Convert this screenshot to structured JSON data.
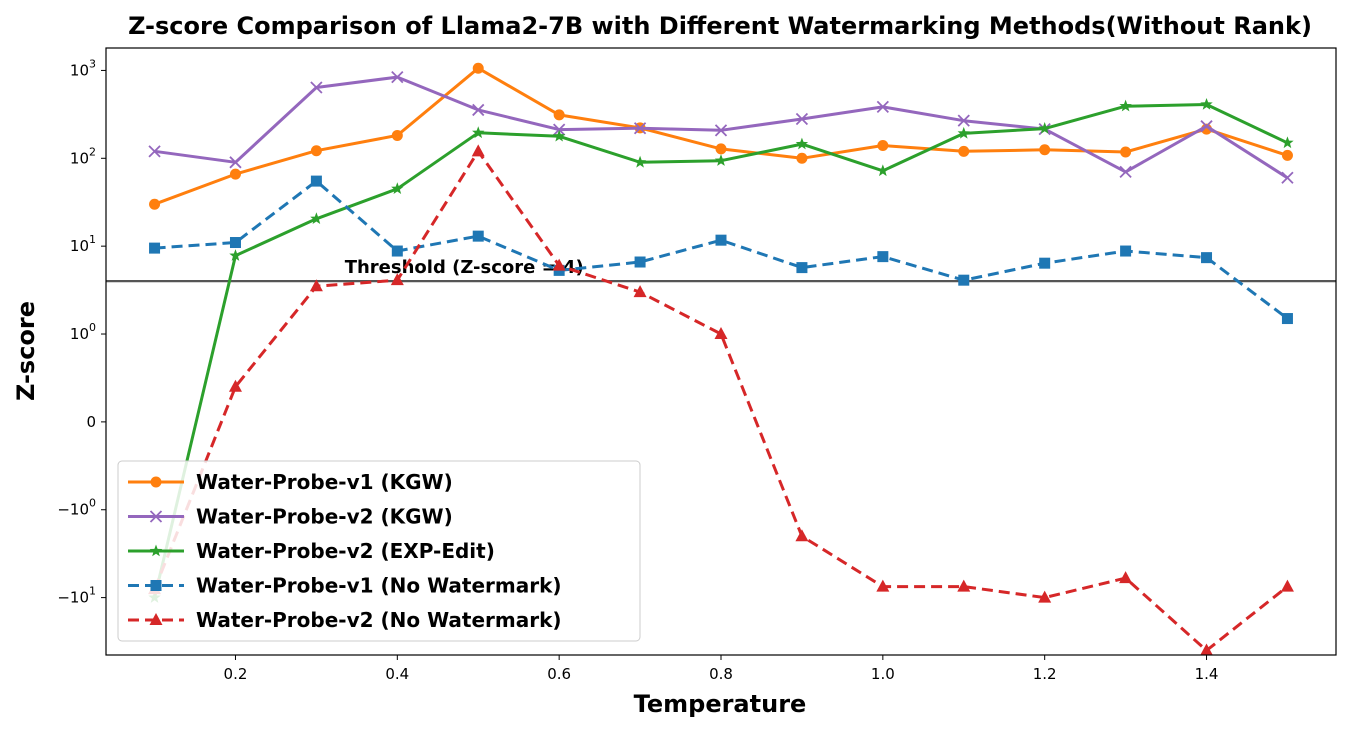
{
  "chart_data": {
    "type": "line",
    "title": "Z-score Comparison of Llama2-7B with Different Watermarking Methods(Without Rank)",
    "xlabel": "Temperature",
    "ylabel": "Z-score",
    "yscale": "symlog",
    "xlim": [
      0.04,
      1.56
    ],
    "ylim": [
      -45,
      1800
    ],
    "x_ticks": [
      0.2,
      0.4,
      0.6,
      0.8,
      1.0,
      1.2,
      1.4
    ],
    "x_tick_labels": [
      "0.2",
      "0.4",
      "0.6",
      "0.8",
      "1.0",
      "1.2",
      "1.4"
    ],
    "y_ticks": [
      1000,
      100,
      10,
      1,
      0,
      -1,
      -10
    ],
    "y_tick_labels": [
      {
        "base": "10",
        "exp": "3"
      },
      {
        "base": "10",
        "exp": "2"
      },
      {
        "base": "10",
        "exp": "1"
      },
      {
        "base": "10",
        "exp": "0"
      },
      {
        "base": "0",
        "exp": ""
      },
      {
        "base": "−10",
        "exp": "0"
      },
      {
        "base": "−10",
        "exp": "1"
      }
    ],
    "threshold": {
      "value": 4,
      "label": "Threshold (Z-score = 4)",
      "color": "#555555"
    },
    "x": [
      0.1,
      0.2,
      0.3,
      0.4,
      0.5,
      0.6,
      0.7,
      0.8,
      0.9,
      1.0,
      1.1,
      1.2,
      1.3,
      1.4,
      1.5
    ],
    "series": [
      {
        "name": "Water-Probe-v1 (KGW)",
        "color": "#ff7f0e",
        "marker": "circle",
        "dashed": false,
        "values": [
          30,
          66,
          122,
          182,
          1060,
          312,
          222,
          128,
          100,
          140,
          120,
          125,
          118,
          215,
          108
        ]
      },
      {
        "name": "Water-Probe-v2 (KGW)",
        "color": "#9467bd",
        "marker": "x",
        "dashed": false,
        "values": [
          120,
          90,
          640,
          840,
          355,
          212,
          220,
          208,
          280,
          385,
          268,
          215,
          70,
          232,
          60
        ]
      },
      {
        "name": "Water-Probe-v2 (EXP-Edit)",
        "color": "#2ca02c",
        "marker": "star",
        "dashed": false,
        "values": [
          -10,
          7.8,
          20.5,
          45,
          195,
          178,
          90,
          94,
          145,
          72,
          192,
          218,
          392,
          410,
          150
        ]
      },
      {
        "name": "Water-Probe-v1 (No Watermark)",
        "color": "#1f77b4",
        "marker": "square",
        "dashed": true,
        "values": [
          9.5,
          11,
          55,
          8.8,
          13,
          5.3,
          6.6,
          11.7,
          5.7,
          7.6,
          4.1,
          6.4,
          8.8,
          7.4,
          1.5
        ]
      },
      {
        "name": "Water-Probe-v2 (No Watermark)",
        "color": "#d62728",
        "marker": "triangle",
        "dashed": true,
        "values": [
          -8,
          0.4,
          3.5,
          4.1,
          120,
          6,
          3,
          1,
          -2,
          -7.5,
          -7.5,
          -10,
          -6,
          -40,
          -7.5
        ]
      }
    ]
  }
}
